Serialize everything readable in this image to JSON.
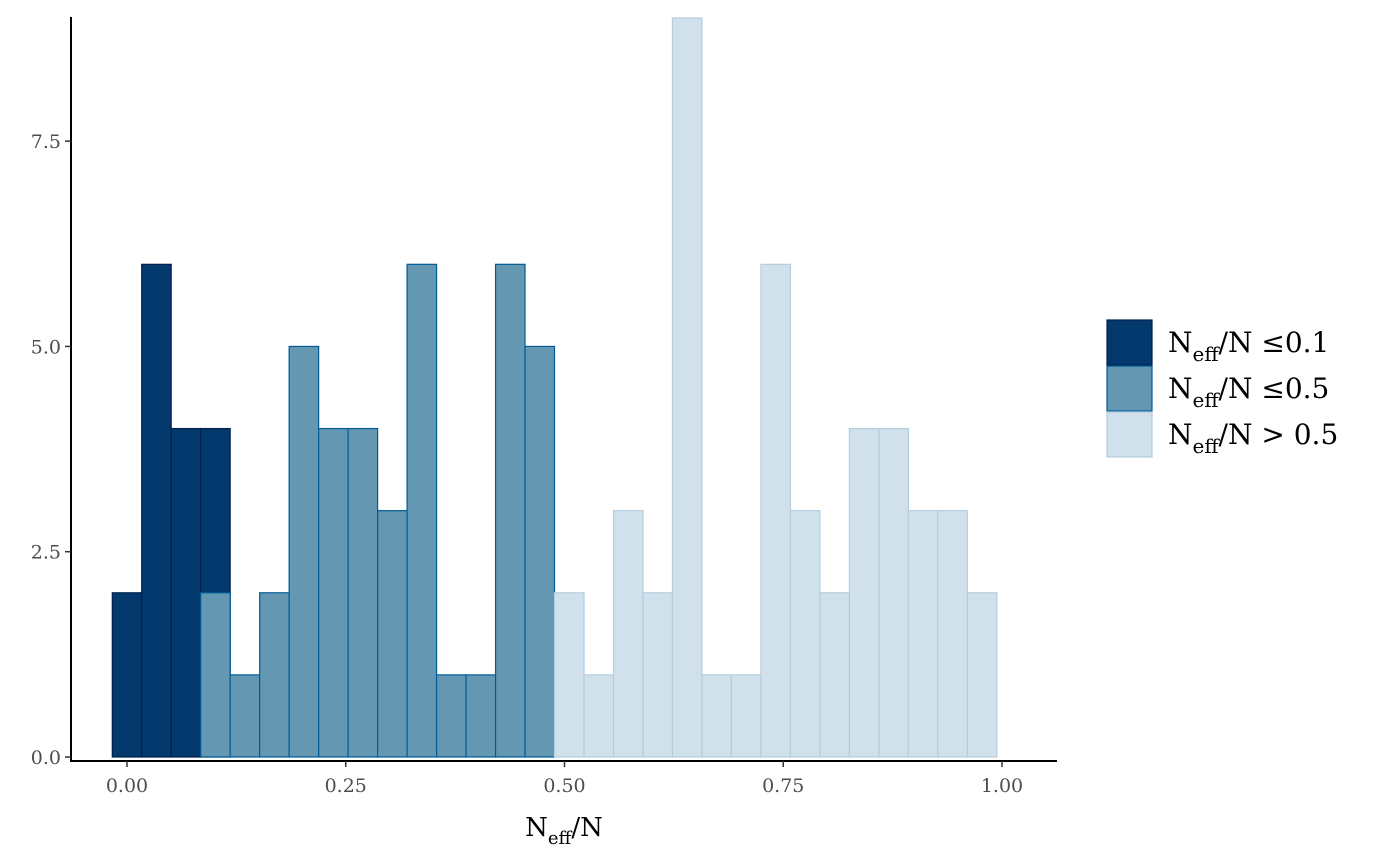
{
  "chart_data": {
    "type": "bar",
    "subtype": "histogram",
    "title": "",
    "xlabel": {
      "base": "N",
      "subscript": "eff",
      "suffix": "/N"
    },
    "ylabel": "",
    "xlim": [
      -0.063,
      1.063
    ],
    "ylim": [
      0,
      9
    ],
    "grid": false,
    "bin_width": 0.0337,
    "x_ticks": [
      {
        "value": 0.0,
        "label": "0.00"
      },
      {
        "value": 0.25,
        "label": "0.25"
      },
      {
        "value": 0.5,
        "label": "0.50"
      },
      {
        "value": 0.75,
        "label": "0.75"
      },
      {
        "value": 1.0,
        "label": "1.00"
      }
    ],
    "y_ticks": [
      {
        "value": 0.0,
        "label": "0.0"
      },
      {
        "value": 2.5,
        "label": "2.5"
      },
      {
        "value": 5.0,
        "label": "5.0"
      },
      {
        "value": 7.5,
        "label": "7.5"
      }
    ],
    "series": [
      {
        "name": "N_eff/N ≤0.1",
        "legend_base": "N",
        "legend_sub": "eff",
        "legend_suffix": "/N ≤0.1",
        "fill": "#03396c",
        "stroke": "#011f4b",
        "bins": [
          {
            "x0": -0.0168,
            "x1": 0.0168,
            "count": 2
          },
          {
            "x0": 0.0168,
            "x1": 0.0505,
            "count": 6
          },
          {
            "x0": 0.0505,
            "x1": 0.0842,
            "count": 4
          },
          {
            "x0": 0.0842,
            "x1": 0.1179,
            "count": 4
          }
        ]
      },
      {
        "name": "N_eff/N ≤0.5",
        "legend_base": "N",
        "legend_sub": "eff",
        "legend_suffix": "/N ≤0.5",
        "fill": "#6497b1",
        "stroke": "#005b96",
        "bins": [
          {
            "x0": 0.0842,
            "x1": 0.1179,
            "count": 2
          },
          {
            "x0": 0.1179,
            "x1": 0.1516,
            "count": 1
          },
          {
            "x0": 0.1516,
            "x1": 0.1853,
            "count": 2
          },
          {
            "x0": 0.1853,
            "x1": 0.219,
            "count": 5
          },
          {
            "x0": 0.219,
            "x1": 0.2527,
            "count": 4
          },
          {
            "x0": 0.2527,
            "x1": 0.2864,
            "count": 4
          },
          {
            "x0": 0.2864,
            "x1": 0.3201,
            "count": 3
          },
          {
            "x0": 0.3201,
            "x1": 0.3538,
            "count": 6
          },
          {
            "x0": 0.3538,
            "x1": 0.3875,
            "count": 1
          },
          {
            "x0": 0.3875,
            "x1": 0.4212,
            "count": 1
          },
          {
            "x0": 0.4212,
            "x1": 0.4549,
            "count": 6
          },
          {
            "x0": 0.4549,
            "x1": 0.4886,
            "count": 5
          }
        ]
      },
      {
        "name": "N_eff/N > 0.5",
        "legend_base": "N",
        "legend_sub": "eff",
        "legend_suffix": "/N > 0.5",
        "fill": "#d1e1ec",
        "stroke": "#b3cde0",
        "bins": [
          {
            "x0": 0.4886,
            "x1": 0.5223,
            "count": 2
          },
          {
            "x0": 0.5223,
            "x1": 0.556,
            "count": 1
          },
          {
            "x0": 0.556,
            "x1": 0.5897,
            "count": 3
          },
          {
            "x0": 0.5897,
            "x1": 0.6234,
            "count": 2
          },
          {
            "x0": 0.6234,
            "x1": 0.6571,
            "count": 9
          },
          {
            "x0": 0.6571,
            "x1": 0.6908,
            "count": 1
          },
          {
            "x0": 0.6908,
            "x1": 0.7245,
            "count": 1
          },
          {
            "x0": 0.7245,
            "x1": 0.7582,
            "count": 6
          },
          {
            "x0": 0.7582,
            "x1": 0.7919,
            "count": 3
          },
          {
            "x0": 0.7919,
            "x1": 0.8256,
            "count": 2
          },
          {
            "x0": 0.8256,
            "x1": 0.8593,
            "count": 4
          },
          {
            "x0": 0.8593,
            "x1": 0.893,
            "count": 4
          },
          {
            "x0": 0.893,
            "x1": 0.9267,
            "count": 3
          },
          {
            "x0": 0.9267,
            "x1": 0.9604,
            "count": 3
          },
          {
            "x0": 0.9604,
            "x1": 0.9941,
            "count": 2
          }
        ]
      }
    ],
    "legend_position": "right"
  }
}
